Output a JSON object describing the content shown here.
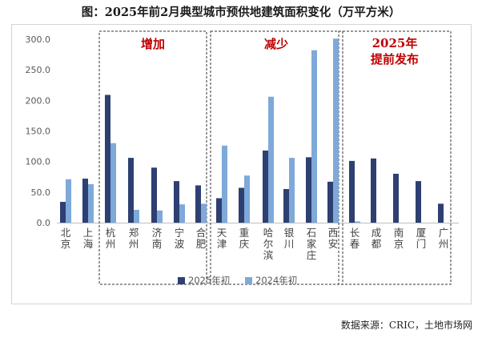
{
  "title": "图：2025年前2月典型城市预供地建筑面积变化（万平方米）",
  "source": "数据来源：CRIC，土地市场网",
  "colors": {
    "series_2025": "#2e3f72",
    "series_2024": "#7ea9d9",
    "group_label": "#c00000"
  },
  "chart_data": {
    "type": "bar",
    "title": "图：2025年前2月典型城市预供地建筑面积变化（万平方米）",
    "xlabel": "",
    "ylabel": "",
    "ylim": [
      0,
      300
    ],
    "yticks": [
      "0.0",
      "50.0",
      "100.0",
      "150.0",
      "200.0",
      "250.0",
      "300.0"
    ],
    "categories": [
      "北京",
      "上海",
      "杭州",
      "郑州",
      "济南",
      "宁波",
      "合肥",
      "天津",
      "重庆",
      "哈尔滨",
      "银川",
      "石家庄",
      "西安",
      "长春",
      "成都",
      "南京",
      "厦门",
      "广州"
    ],
    "series": [
      {
        "name": "2025年初",
        "values": [
          34,
          72,
          209,
          106,
          90,
          68,
          61,
          40,
          57,
          118,
          55,
          107,
          67,
          101,
          105,
          80,
          68,
          31
        ]
      },
      {
        "name": "2024年初",
        "values": [
          71,
          63,
          130,
          21,
          20,
          30,
          31,
          126,
          77,
          206,
          106,
          282,
          301,
          2,
          0,
          0,
          0,
          0
        ]
      }
    ],
    "groups": [
      {
        "label": "增加"
      },
      {
        "label": "减少"
      },
      {
        "label_lines": [
          "2025年",
          "提前发布"
        ]
      }
    ],
    "legend": "bottom-center",
    "grid": false
  }
}
